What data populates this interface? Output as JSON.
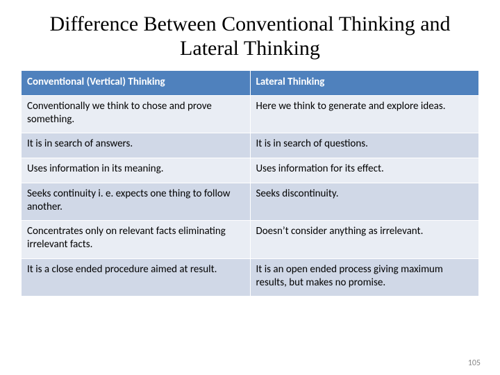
{
  "title": "Difference Between Conventional Thinking and Lateral Thinking",
  "page_number": "105",
  "table": {
    "header_bg": "#4f81bd",
    "band_a_bg": "#e9edf4",
    "band_b_bg": "#d0d8e7",
    "columns": [
      "Conventional (Vertical) Thinking",
      "Lateral Thinking"
    ],
    "rows": [
      [
        "Conventionally  we think to chose and prove  something.",
        "Here we think to generate and explore ideas."
      ],
      [
        "It is in search of answers.",
        "It is in search of questions."
      ],
      [
        "Uses information in its meaning.",
        "Uses information for its effect."
      ],
      [
        "Seeks continuity i. e. expects one thing to follow another.",
        "Seeks discontinuity."
      ],
      [
        "Concentrates only  on relevant facts eliminating irrelevant facts.",
        "Doesn’t  consider anything as irrelevant."
      ],
      [
        "It is a close ended procedure aimed at result.",
        "It is an open ended process giving maximum results, but makes no promise."
      ]
    ]
  }
}
